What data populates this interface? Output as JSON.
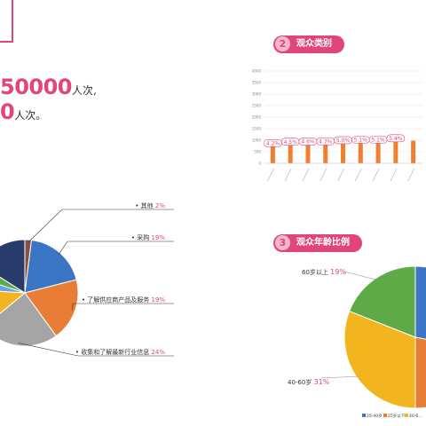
{
  "header": {
    "line1_number": "50000",
    "line1_unit": "人次,",
    "line2_number": "0",
    "line2_unit": "人次。"
  },
  "sections": {
    "audience_category": {
      "num": "2",
      "title": "观众类别"
    },
    "audience_age": {
      "num": "3",
      "title": "观众年龄比例"
    }
  },
  "colors": {
    "accent": "#e0457b",
    "bar": "#f07f2f"
  },
  "chart_data": [
    {
      "type": "pie",
      "title": "",
      "slices": [
        {
          "label": "其他",
          "value": 2,
          "pct_text": "2%",
          "color": "#8a4f3e"
        },
        {
          "label": "采购",
          "value": 19,
          "pct_text": "19%",
          "color": "#3a76c4"
        },
        {
          "label": "了解供应商产品及服务",
          "value": 19,
          "pct_text": "19%",
          "color": "#ea7d35"
        },
        {
          "label": "收集和了解最新行业信息",
          "value": 24,
          "pct_text": "24%",
          "color": "#a5a5a5"
        },
        {
          "label": "",
          "value": 12,
          "pct_text": "",
          "color": "#f2b51f"
        },
        {
          "label": "",
          "value": 4,
          "pct_text": "",
          "color": "#65a6df"
        },
        {
          "label": "",
          "value": 4,
          "pct_text": "",
          "color": "#5eaa46"
        },
        {
          "label": "",
          "value": 16,
          "pct_text": "",
          "color": "#283c6b"
        }
      ]
    },
    {
      "type": "bar",
      "title": "",
      "ylim": [
        0,
        4000
      ],
      "yticks": [
        "0",
        "500",
        "1000",
        "1500",
        "2000",
        "2500",
        "3000",
        "3500",
        "4000"
      ],
      "categories": [
        "",
        "",
        "",
        "",
        "",
        "",
        "",
        "",
        ""
      ],
      "values": [
        720,
        780,
        790,
        800,
        850,
        870,
        870,
        930,
        980
      ],
      "data_labels": [
        "4.2%",
        "4.5%",
        "4.6%",
        "4.7%",
        "5.0%",
        "5.1%",
        "5.1%",
        "5.4%",
        ""
      ]
    },
    {
      "type": "pie",
      "title": "",
      "slices": [
        {
          "label": "25-40岁",
          "value": 28,
          "pct_text": "",
          "color": "#3a76c4"
        },
        {
          "label": "25岁以下",
          "value": 22,
          "pct_text": "",
          "color": "#ea7d35"
        },
        {
          "label": "40-60岁",
          "value": 31,
          "pct_text": "31%",
          "color": "#f2b51f"
        },
        {
          "label": "60岁以上",
          "value": 19,
          "pct_text": "19%",
          "color": "#5eaa46"
        }
      ],
      "legend": [
        "25-40岁",
        "25岁以下",
        "40-6..."
      ]
    }
  ]
}
